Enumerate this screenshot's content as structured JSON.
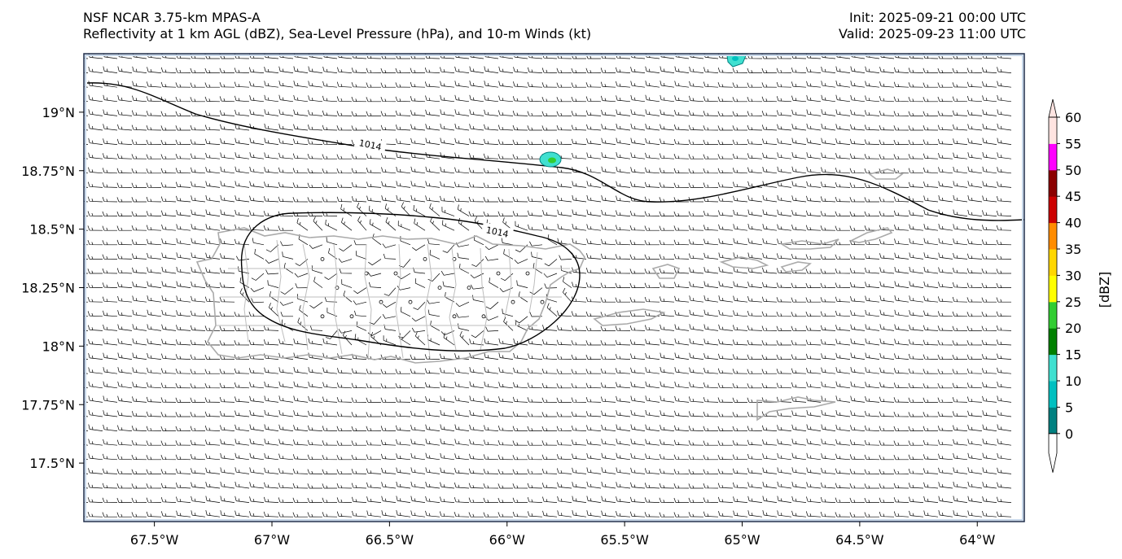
{
  "header": {
    "left_line1": "NSF NCAR 3.75-km MPAS-A",
    "left_line2": "Reflectivity at 1 km AGL (dBZ), Sea-Level Pressure (hPa), and 10-m Winds (kt)",
    "right_line1": "Init: 2025-09-21 00:00 UTC",
    "right_line2": "Valid: 2025-09-23 11:00 UTC"
  },
  "map": {
    "lon_range": [
      -67.8,
      -63.8
    ],
    "lat_range": [
      17.25,
      19.25
    ],
    "x_ticks": [
      {
        "lon": -67.5,
        "label": "67.5°W"
      },
      {
        "lon": -67.0,
        "label": "67°W"
      },
      {
        "lon": -66.5,
        "label": "66.5°W"
      },
      {
        "lon": -66.0,
        "label": "66°W"
      },
      {
        "lon": -65.5,
        "label": "65.5°W"
      },
      {
        "lon": -65.0,
        "label": "65°W"
      },
      {
        "lon": -64.5,
        "label": "64.5°W"
      },
      {
        "lon": -64.0,
        "label": "64°W"
      }
    ],
    "y_ticks": [
      {
        "lat": 19.0,
        "label": "19°N"
      },
      {
        "lat": 18.75,
        "label": "18.75°N"
      },
      {
        "lat": 18.5,
        "label": "18.5°N"
      },
      {
        "lat": 18.25,
        "label": "18.25°N"
      },
      {
        "lat": 18.0,
        "label": "18°N"
      },
      {
        "lat": 17.75,
        "label": "17.75°N"
      },
      {
        "lat": 17.5,
        "label": "17.5°N"
      }
    ],
    "isobar_label_1": "1014",
    "isobar_label_2": "1014",
    "isobar_value_hpa": 1014,
    "background_wind": "easterly ~10 kt",
    "calm_region": "over Puerto Rico interior"
  },
  "colorbar": {
    "label": "[dBZ]",
    "levels": [
      "0",
      "5",
      "10",
      "15",
      "20",
      "25",
      "30",
      "35",
      "40",
      "45",
      "50",
      "55",
      "60"
    ],
    "colors": [
      "#008080",
      "#00c0c0",
      "#40e0d0",
      "#008000",
      "#32cd32",
      "#ffff00",
      "#ffd700",
      "#ff8c00",
      "#cc0000",
      "#8b0000",
      "#ff00ff",
      "#ffe4e1"
    ],
    "extend": "both"
  },
  "colors": {
    "coast": "#aaaaaa",
    "barb": "#000000",
    "isobar": "#000000",
    "ocean": "#ffffff",
    "frame": "#1f2d4a"
  }
}
